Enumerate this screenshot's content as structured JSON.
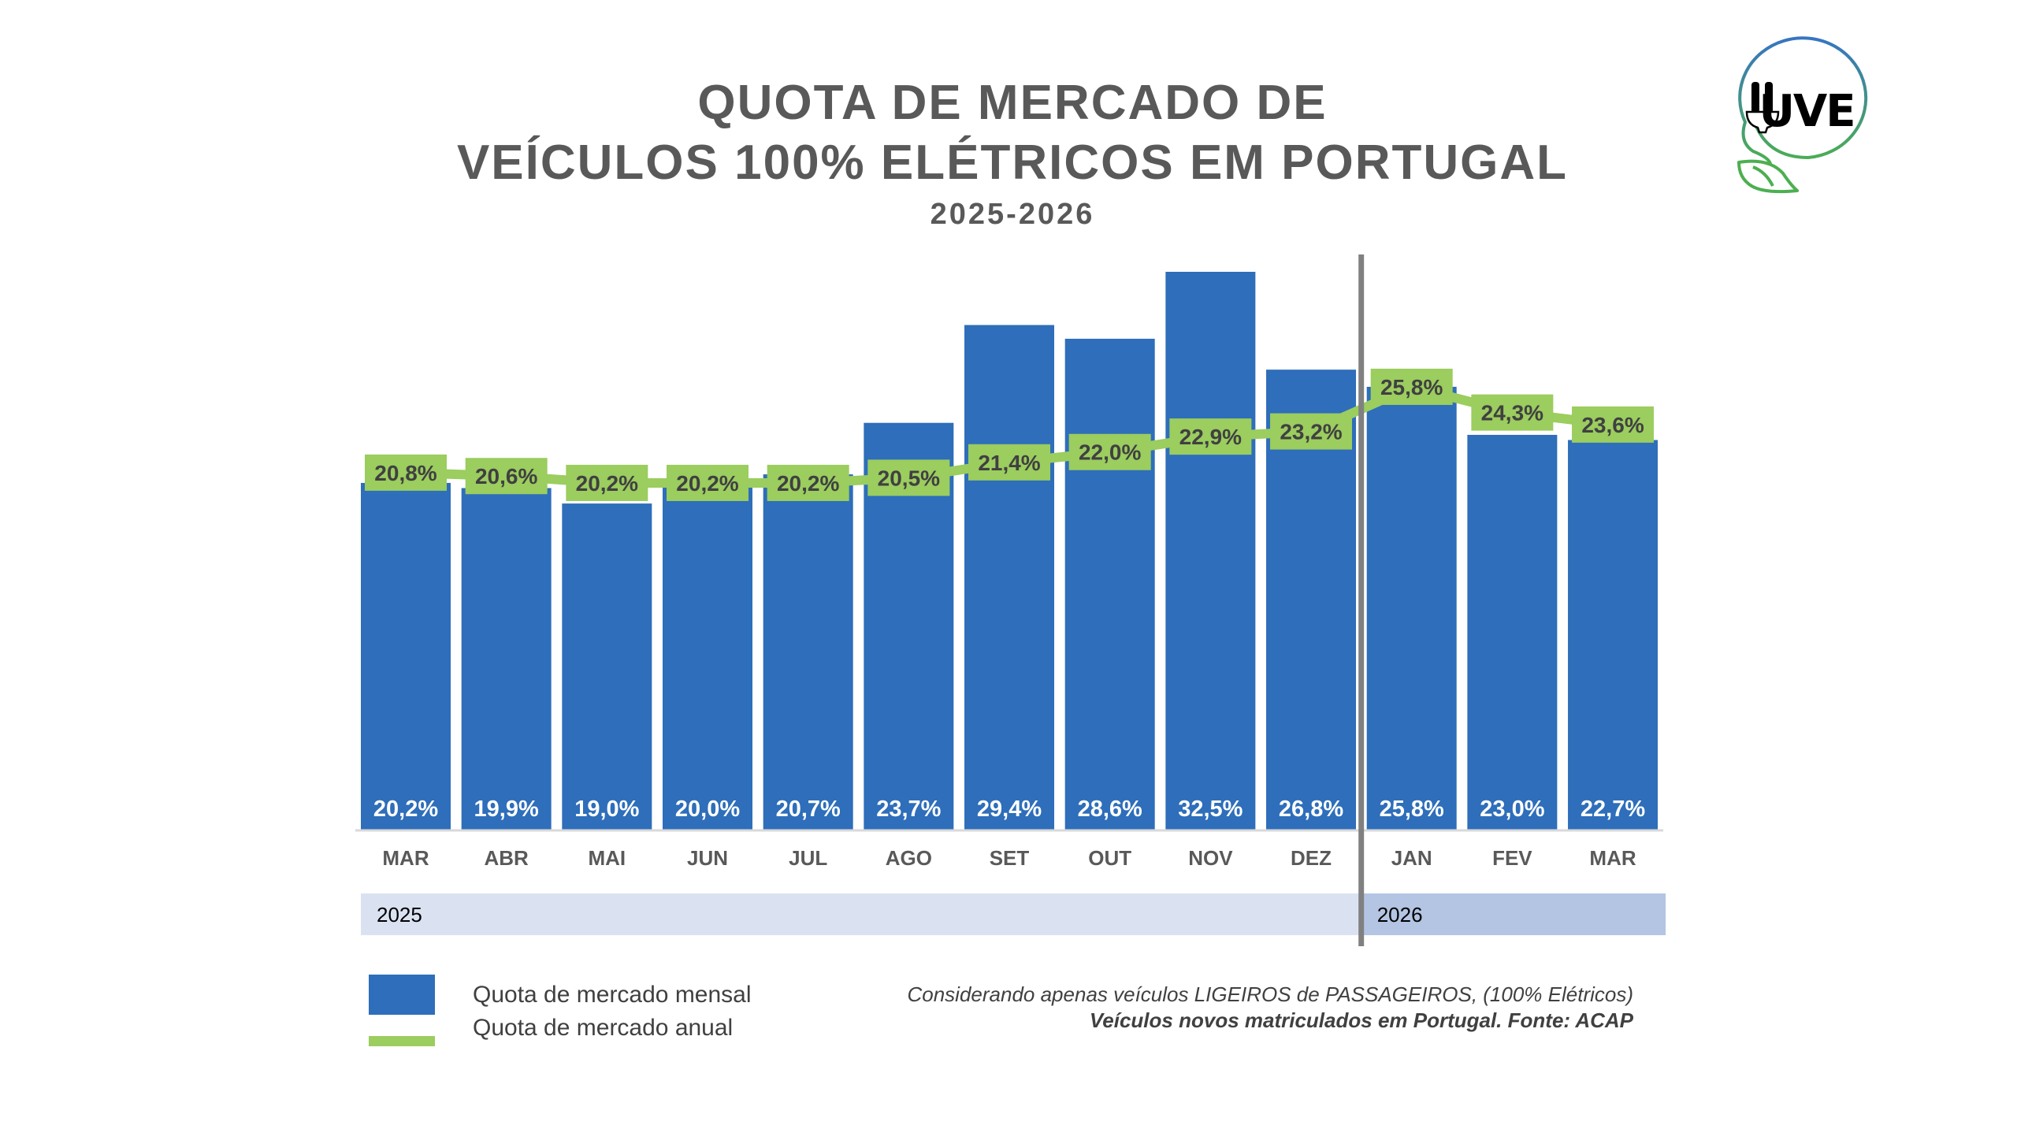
{
  "title": {
    "line1": "QUOTA DE MERCADO DE",
    "line2": "VEÍCULOS 100% ELÉTRICOS EM PORTUGAL",
    "subtitle": "2025-2026"
  },
  "logo": {
    "text": "UVE",
    "icon": "uve-plug-leaf-logo"
  },
  "colors": {
    "bar": "#2E6EBA",
    "line": "#9BCD5F",
    "title": "#595959",
    "year_band_2025": "#DAE2F2",
    "year_band_2026": "#B4C5E3",
    "divider": "#808080"
  },
  "chart_data": {
    "type": "bar+line",
    "title": "QUOTA DE MERCADO DE VEÍCULOS 100% ELÉTRICOS EM PORTUGAL",
    "subtitle": "2025-2026",
    "categories": [
      "MAR",
      "ABR",
      "MAI",
      "JUN",
      "JUL",
      "AGO",
      "SET",
      "OUT",
      "NOV",
      "DEZ",
      "JAN",
      "FEV",
      "MAR"
    ],
    "years": [
      {
        "label": "2025",
        "start_index": 0,
        "end_index": 9
      },
      {
        "label": "2026",
        "start_index": 10,
        "end_index": 12
      }
    ],
    "series": [
      {
        "name": "Quota de mercado mensal",
        "type": "bar",
        "values": [
          20.2,
          19.9,
          19.0,
          20.0,
          20.7,
          23.7,
          29.4,
          28.6,
          32.5,
          26.8,
          25.8,
          23.0,
          22.7
        ],
        "labels": [
          "20,2%",
          "19,9%",
          "19,0%",
          "20,0%",
          "20,7%",
          "23,7%",
          "29,4%",
          "28,6%",
          "32,5%",
          "26,8%",
          "25,8%",
          "23,0%",
          "22,7%"
        ]
      },
      {
        "name": "Quota de mercado anual",
        "type": "line",
        "values": [
          20.8,
          20.6,
          20.2,
          20.2,
          20.2,
          20.5,
          21.4,
          22.0,
          22.9,
          23.2,
          25.8,
          24.3,
          23.6
        ],
        "labels": [
          "20,8%",
          "20,6%",
          "20,2%",
          "20,2%",
          "20,2%",
          "20,5%",
          "21,4%",
          "22,0%",
          "22,9%",
          "23,2%",
          "25,8%",
          "24,3%",
          "23,6%"
        ]
      }
    ],
    "xlabel": "",
    "ylabel": "",
    "ylim": [
      0,
      32.5
    ],
    "grid": false,
    "y_axis_visible": false,
    "legend": "bottom-left",
    "annotations": [
      "Divider between 2025 and 2026"
    ]
  },
  "legend": {
    "items": [
      {
        "label": "Quota de mercado mensal",
        "kind": "bar"
      },
      {
        "label": "Quota de mercado anual",
        "kind": "line"
      }
    ]
  },
  "notes": {
    "line1": "Considerando apenas veículos LIGEIROS de PASSAGEIROS, (100% Elétricos)",
    "line2": "Veículos novos matriculados em Portugal. Fonte: ACAP"
  }
}
